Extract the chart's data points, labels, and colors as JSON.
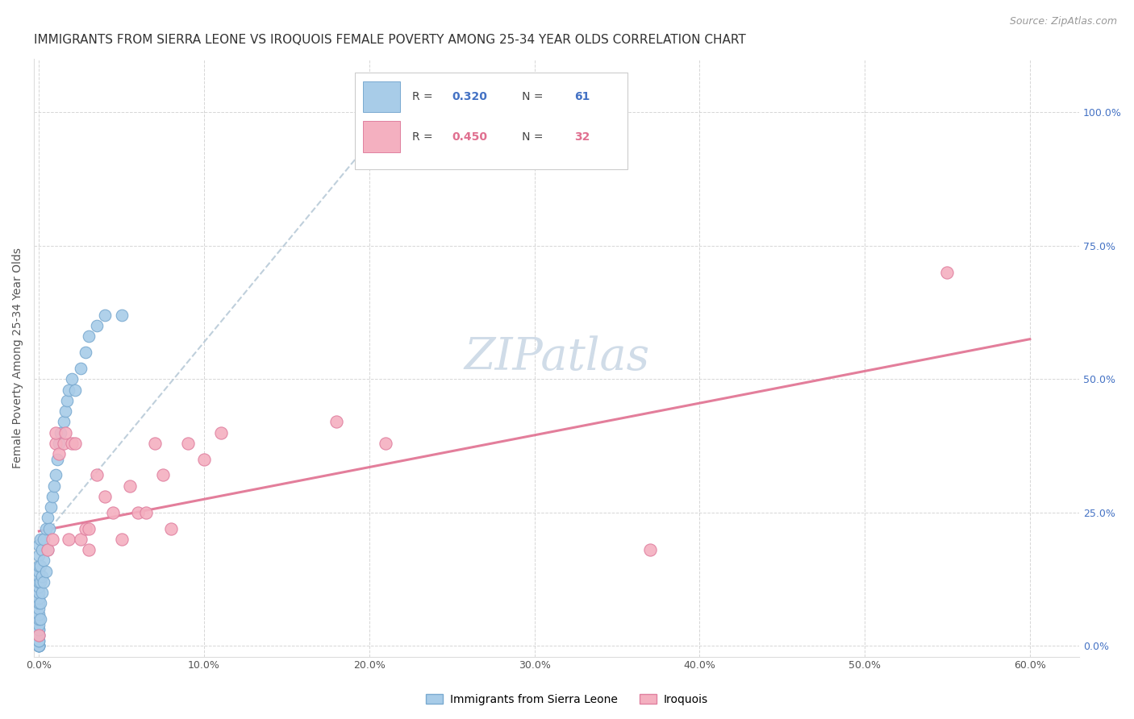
{
  "title": "IMMIGRANTS FROM SIERRA LEONE VS IROQUOIS FEMALE POVERTY AMONG 25-34 YEAR OLDS CORRELATION CHART",
  "source": "Source: ZipAtlas.com",
  "ylabel_label": "Female Poverty Among 25-34 Year Olds",
  "xlim": [
    0.0,
    0.63
  ],
  "ylim": [
    -0.02,
    1.1
  ],
  "background_color": "#ffffff",
  "grid_color": "#cccccc",
  "watermark": "ZIPatlas",
  "blue_label": "Immigrants from Sierra Leone",
  "blue_R": "0.320",
  "blue_N": "61",
  "blue_color": "#a8cce8",
  "blue_edge": "#7aaad0",
  "pink_label": "Iroquois",
  "pink_R": "0.450",
  "pink_N": "32",
  "pink_color": "#f4b0c0",
  "pink_edge": "#e080a0",
  "blue_x": [
    0.0,
    0.0,
    0.0,
    0.0,
    0.0,
    0.0,
    0.0,
    0.0,
    0.0,
    0.0,
    0.0,
    0.0,
    0.0,
    0.0,
    0.0,
    0.0,
    0.0,
    0.0,
    0.0,
    0.0,
    0.0,
    0.0,
    0.0,
    0.0,
    0.0,
    0.0,
    0.001,
    0.001,
    0.001,
    0.001,
    0.001,
    0.002,
    0.002,
    0.002,
    0.003,
    0.003,
    0.003,
    0.004,
    0.004,
    0.005,
    0.005,
    0.006,
    0.007,
    0.008,
    0.009,
    0.01,
    0.011,
    0.012,
    0.013,
    0.015,
    0.016,
    0.017,
    0.018,
    0.02,
    0.022,
    0.025,
    0.028,
    0.03,
    0.035,
    0.04,
    0.05
  ],
  "blue_y": [
    0.0,
    0.0,
    0.0,
    0.0,
    0.0,
    0.0,
    0.01,
    0.01,
    0.02,
    0.02,
    0.03,
    0.03,
    0.04,
    0.05,
    0.06,
    0.07,
    0.08,
    0.09,
    0.1,
    0.11,
    0.12,
    0.13,
    0.14,
    0.15,
    0.17,
    0.19,
    0.05,
    0.08,
    0.12,
    0.15,
    0.2,
    0.1,
    0.13,
    0.18,
    0.12,
    0.16,
    0.2,
    0.14,
    0.22,
    0.18,
    0.24,
    0.22,
    0.26,
    0.28,
    0.3,
    0.32,
    0.35,
    0.38,
    0.4,
    0.42,
    0.44,
    0.46,
    0.48,
    0.5,
    0.48,
    0.52,
    0.55,
    0.58,
    0.6,
    0.62,
    0.62
  ],
  "pink_x": [
    0.0,
    0.005,
    0.008,
    0.01,
    0.01,
    0.012,
    0.015,
    0.016,
    0.018,
    0.02,
    0.022,
    0.025,
    0.028,
    0.03,
    0.03,
    0.035,
    0.04,
    0.045,
    0.05,
    0.055,
    0.06,
    0.065,
    0.07,
    0.075,
    0.08,
    0.09,
    0.1,
    0.11,
    0.18,
    0.21,
    0.37,
    0.55
  ],
  "pink_y": [
    0.02,
    0.18,
    0.2,
    0.38,
    0.4,
    0.36,
    0.38,
    0.4,
    0.2,
    0.38,
    0.38,
    0.2,
    0.22,
    0.18,
    0.22,
    0.32,
    0.28,
    0.25,
    0.2,
    0.3,
    0.25,
    0.25,
    0.38,
    0.32,
    0.22,
    0.38,
    0.35,
    0.4,
    0.42,
    0.38,
    0.18,
    0.7
  ],
  "title_fontsize": 11,
  "source_fontsize": 9,
  "tick_fontsize": 9,
  "ylabel_fontsize": 10,
  "watermark_fontsize": 40,
  "watermark_color": "#d0dce8",
  "right_tick_color": "#4472c4",
  "ylabel_color": "#555555",
  "title_color": "#333333"
}
